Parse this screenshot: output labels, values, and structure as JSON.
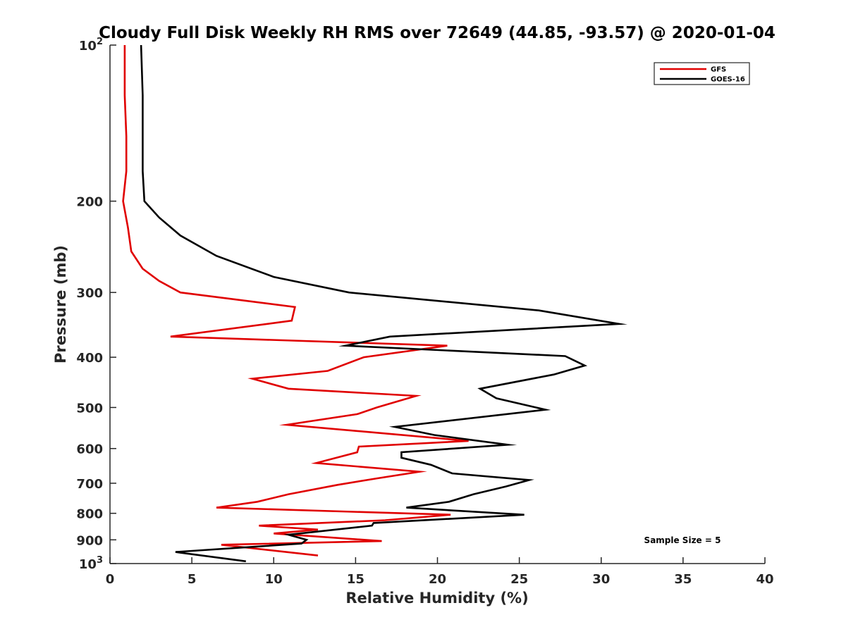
{
  "chart_data": {
    "type": "line",
    "title": "Cloudy Full Disk Weekly RH RMS over 72649 (44.85, -93.57) @ 2020-01-04",
    "xlabel": "Relative Humidity (%)",
    "ylabel": "Pressure (mb)",
    "xlim": [
      0,
      40
    ],
    "ylim": [
      100,
      1000
    ],
    "y_scale": "log",
    "y_reversed": true,
    "x_ticks": [
      "0",
      "5",
      "10",
      "15",
      "20",
      "25",
      "30",
      "35",
      "40"
    ],
    "y_ticks": [
      {
        "value": 100,
        "base": "10",
        "exp": "2"
      },
      {
        "value": 200,
        "label": "200"
      },
      {
        "value": 300,
        "label": "300"
      },
      {
        "value": 400,
        "label": "400"
      },
      {
        "value": 500,
        "label": "500"
      },
      {
        "value": 600,
        "label": "600"
      },
      {
        "value": 700,
        "label": "700"
      },
      {
        "value": 800,
        "label": "800"
      },
      {
        "value": 900,
        "label": "900"
      },
      {
        "value": 1000,
        "base": "10",
        "exp": "3"
      }
    ],
    "legend_position": "top-right",
    "annotation": "Sample Size = 5",
    "series": [
      {
        "name": "GFS",
        "color": "#e00000",
        "points": [
          [
            0.9,
            100
          ],
          [
            0.9,
            125
          ],
          [
            1.0,
            150
          ],
          [
            1.0,
            175
          ],
          [
            0.8,
            200
          ],
          [
            1.1,
            225
          ],
          [
            1.3,
            250
          ],
          [
            2.0,
            270
          ],
          [
            3.0,
            285
          ],
          [
            4.3,
            300
          ],
          [
            11.3,
            320
          ],
          [
            11.1,
            340
          ],
          [
            3.7,
            365
          ],
          [
            20.6,
            380
          ],
          [
            15.5,
            400
          ],
          [
            13.3,
            425
          ],
          [
            8.7,
            440
          ],
          [
            10.9,
            460
          ],
          [
            18.7,
            475
          ],
          [
            16.3,
            500
          ],
          [
            15.1,
            515
          ],
          [
            10.8,
            540
          ],
          [
            21.9,
            580
          ],
          [
            15.2,
            595
          ],
          [
            15.1,
            610
          ],
          [
            12.6,
            640
          ],
          [
            18.9,
            665
          ],
          [
            16.3,
            685
          ],
          [
            13.9,
            705
          ],
          [
            10.9,
            735
          ],
          [
            9.0,
            760
          ],
          [
            6.5,
            780
          ],
          [
            20.8,
            805
          ],
          [
            16.8,
            825
          ],
          [
            9.1,
            845
          ],
          [
            12.7,
            860
          ],
          [
            10.0,
            875
          ],
          [
            16.6,
            905
          ],
          [
            6.8,
            920
          ],
          [
            12.7,
            965
          ]
        ]
      },
      {
        "name": "GOES-16",
        "color": "#000000",
        "points": [
          [
            1.9,
            100
          ],
          [
            2.0,
            125
          ],
          [
            2.0,
            150
          ],
          [
            2.0,
            175
          ],
          [
            2.1,
            200
          ],
          [
            3.0,
            215
          ],
          [
            4.3,
            233
          ],
          [
            6.5,
            255
          ],
          [
            10.0,
            280
          ],
          [
            14.6,
            300
          ],
          [
            26.2,
            325
          ],
          [
            31.1,
            345
          ],
          [
            17.1,
            365
          ],
          [
            14.4,
            380
          ],
          [
            27.8,
            398
          ],
          [
            29.0,
            415
          ],
          [
            27.1,
            432
          ],
          [
            22.6,
            460
          ],
          [
            23.6,
            480
          ],
          [
            26.6,
            505
          ],
          [
            17.4,
            545
          ],
          [
            19.8,
            565
          ],
          [
            24.3,
            590
          ],
          [
            17.8,
            610
          ],
          [
            17.8,
            625
          ],
          [
            19.6,
            645
          ],
          [
            20.9,
            670
          ],
          [
            25.6,
            690
          ],
          [
            24.2,
            710
          ],
          [
            22.2,
            735
          ],
          [
            20.7,
            760
          ],
          [
            18.1,
            780
          ],
          [
            25.3,
            805
          ],
          [
            16.1,
            835
          ],
          [
            16.0,
            845
          ],
          [
            10.9,
            880
          ],
          [
            12.0,
            900
          ],
          [
            11.7,
            915
          ],
          [
            4.0,
            950
          ],
          [
            8.3,
            990
          ]
        ]
      }
    ]
  }
}
